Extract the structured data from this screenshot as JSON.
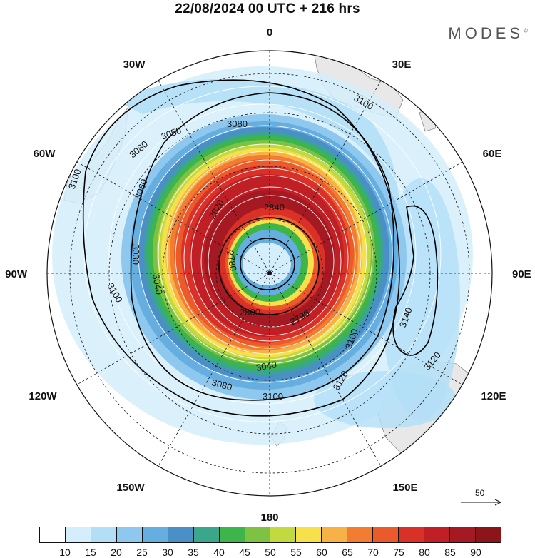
{
  "header": {
    "title": "22/08/2024  00 UTC  + 216 hrs",
    "brand": "MODES",
    "brand_mark": "©"
  },
  "map": {
    "projection": "south-polar-stereographic",
    "lon_labels": [
      {
        "key": "lon-0",
        "text": "0"
      },
      {
        "key": "lon-30e",
        "text": "30E"
      },
      {
        "key": "lon-60e",
        "text": "60E"
      },
      {
        "key": "lon-90e",
        "text": "90E"
      },
      {
        "key": "lon-120e",
        "text": "120E"
      },
      {
        "key": "lon-150e",
        "text": "150E"
      },
      {
        "key": "lon-180",
        "text": "180"
      },
      {
        "key": "lon-150w",
        "text": "150W"
      },
      {
        "key": "lon-120w",
        "text": "120W"
      },
      {
        "key": "lon-90w",
        "text": "90W"
      },
      {
        "key": "lon-60w",
        "text": "60W"
      },
      {
        "key": "lon-30w",
        "text": "30W"
      }
    ],
    "contour_labels": [
      "3080",
      "3050",
      "3080",
      "3100",
      "3060",
      "3030",
      "3040",
      "3100",
      "2820",
      "2840",
      "2780",
      "2800",
      "2790",
      "3100",
      "3080",
      "3040",
      "3120",
      "3120",
      "3140",
      "3100",
      "3100"
    ],
    "scale_vector": "50",
    "colors": {
      "land": "#e8e8e8",
      "contour": "#000000",
      "streamline": "#ffffff"
    }
  },
  "legend": {
    "colors": [
      "#ffffff",
      "#d4effb",
      "#b2dff6",
      "#8ec8ee",
      "#66aee0",
      "#4a90c7",
      "#3aa68c",
      "#3db54b",
      "#7dc242",
      "#c3d940",
      "#f6e04b",
      "#f8b144",
      "#f27d32",
      "#ea5a2b",
      "#d93127",
      "#c01f25",
      "#a51a22",
      "#8b1518"
    ],
    "ticks": [
      "10",
      "15",
      "20",
      "25",
      "30",
      "35",
      "40",
      "45",
      "50",
      "55",
      "60",
      "65",
      "70",
      "75",
      "80",
      "85",
      "90"
    ]
  }
}
